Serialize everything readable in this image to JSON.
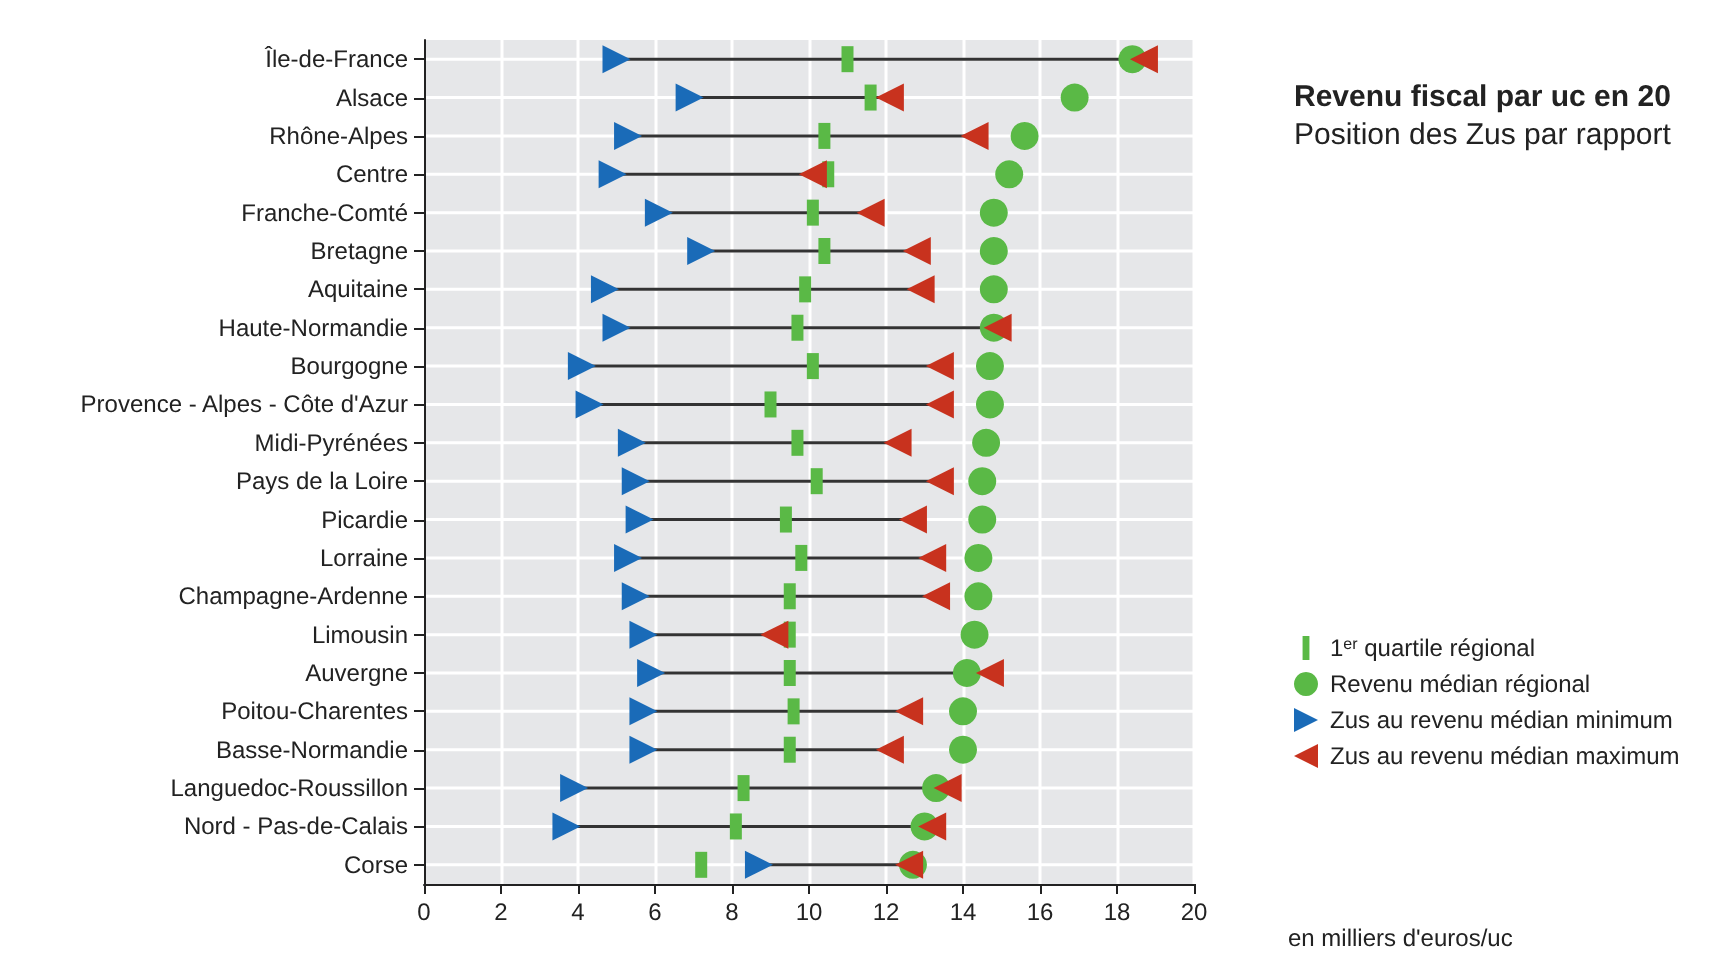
{
  "chart_data": {
    "type": "scatter",
    "orientation": "horizontal",
    "title": "Revenu fiscal par uc en 20",
    "subtitle": "Position des Zus par rapport",
    "xlabel": "en milliers d'euros/uc",
    "categories": [
      "Île-de-France",
      "Alsace",
      "Rhône-Alpes",
      "Centre",
      "Franche-Comté",
      "Bretagne",
      "Aquitaine",
      "Haute-Normandie",
      "Bourgogne",
      "Provence - Alpes - Côte d'Azur",
      "Midi-Pyrénées",
      "Pays de la Loire",
      "Picardie",
      "Lorraine",
      "Champagne-Ardenne",
      "Limousin",
      "Auvergne",
      "Poitou-Charentes",
      "Basse-Normandie",
      "Languedoc-Roussillon",
      "Nord - Pas-de-Calais",
      "Corse"
    ],
    "series": [
      {
        "name": "1$^{er}$ quartile régional",
        "color": "#5ab946",
        "marker": "square",
        "values": [
          11.0,
          11.6,
          10.4,
          10.5,
          10.1,
          10.4,
          9.9,
          9.7,
          10.1,
          9.0,
          9.7,
          10.2,
          9.4,
          9.8,
          9.5,
          9.5,
          9.5,
          9.6,
          9.5,
          8.3,
          8.1,
          7.2
        ]
      },
      {
        "name": "Revenu médian régional",
        "color": "#5ab946",
        "marker": "circle",
        "values": [
          18.4,
          16.9,
          15.6,
          15.2,
          14.8,
          14.8,
          14.8,
          14.8,
          14.7,
          14.7,
          14.6,
          14.5,
          14.5,
          14.4,
          14.4,
          14.3,
          14.1,
          14.0,
          14.0,
          13.3,
          13.0,
          12.7
        ]
      },
      {
        "name": "Zus au revenu médian minimum",
        "color": "#1a6bb8",
        "marker": "triangle-right",
        "values": [
          5.0,
          6.9,
          5.3,
          4.9,
          6.1,
          7.2,
          4.7,
          5.0,
          4.1,
          4.3,
          5.4,
          5.5,
          5.6,
          5.3,
          5.5,
          5.7,
          5.9,
          5.7,
          5.7,
          3.9,
          3.7,
          8.7
        ]
      },
      {
        "name": "Zus au revenu médian maximum",
        "color": "#c8321e",
        "marker": "triangle-left",
        "values": [
          18.7,
          12.1,
          14.3,
          10.1,
          11.6,
          12.8,
          12.9,
          14.9,
          13.4,
          13.4,
          12.3,
          13.4,
          12.7,
          13.2,
          13.3,
          9.1,
          14.7,
          12.6,
          12.1,
          13.6,
          13.2,
          12.6
        ]
      }
    ],
    "xlim": [
      0,
      20
    ],
    "xticks": [
      0,
      2,
      4,
      6,
      8,
      10,
      12,
      14,
      16,
      18,
      20
    ],
    "grid": true,
    "legend": "right"
  }
}
